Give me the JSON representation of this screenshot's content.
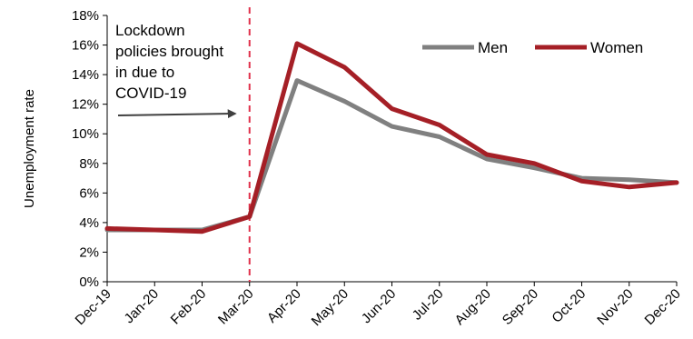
{
  "chart_data": {
    "type": "line",
    "title": "",
    "xlabel": "",
    "ylabel": "Unemployment rate",
    "categories": [
      "Dec-19",
      "Jan-20",
      "Feb-20",
      "Mar-20",
      "Apr-20",
      "May-20",
      "Jun-20",
      "Jul-20",
      "Aug-20",
      "Sep-20",
      "Oct-20",
      "Nov-20",
      "Dec-20"
    ],
    "y_ticks": [
      "0%",
      "2%",
      "4%",
      "6%",
      "8%",
      "10%",
      "12%",
      "14%",
      "16%",
      "18%"
    ],
    "ylim": [
      0,
      18
    ],
    "grid": false,
    "legend_position": "top-right",
    "series": [
      {
        "name": "Men",
        "color": "#808080",
        "values": [
          3.5,
          3.5,
          3.5,
          4.4,
          13.6,
          12.2,
          10.5,
          9.8,
          8.3,
          7.7,
          7.0,
          6.9,
          6.7
        ]
      },
      {
        "name": "Women",
        "color": "#A51F26",
        "values": [
          3.6,
          3.5,
          3.4,
          4.4,
          16.1,
          14.5,
          11.7,
          10.6,
          8.6,
          8.0,
          6.8,
          6.4,
          6.7
        ]
      }
    ],
    "annotation": {
      "lines": [
        "Lockdown",
        "policies brought",
        "in due to",
        "COVID-19"
      ],
      "marker_category": "Mar-20",
      "marker_color": "#E0314B"
    },
    "axis_color": "#000000"
  }
}
